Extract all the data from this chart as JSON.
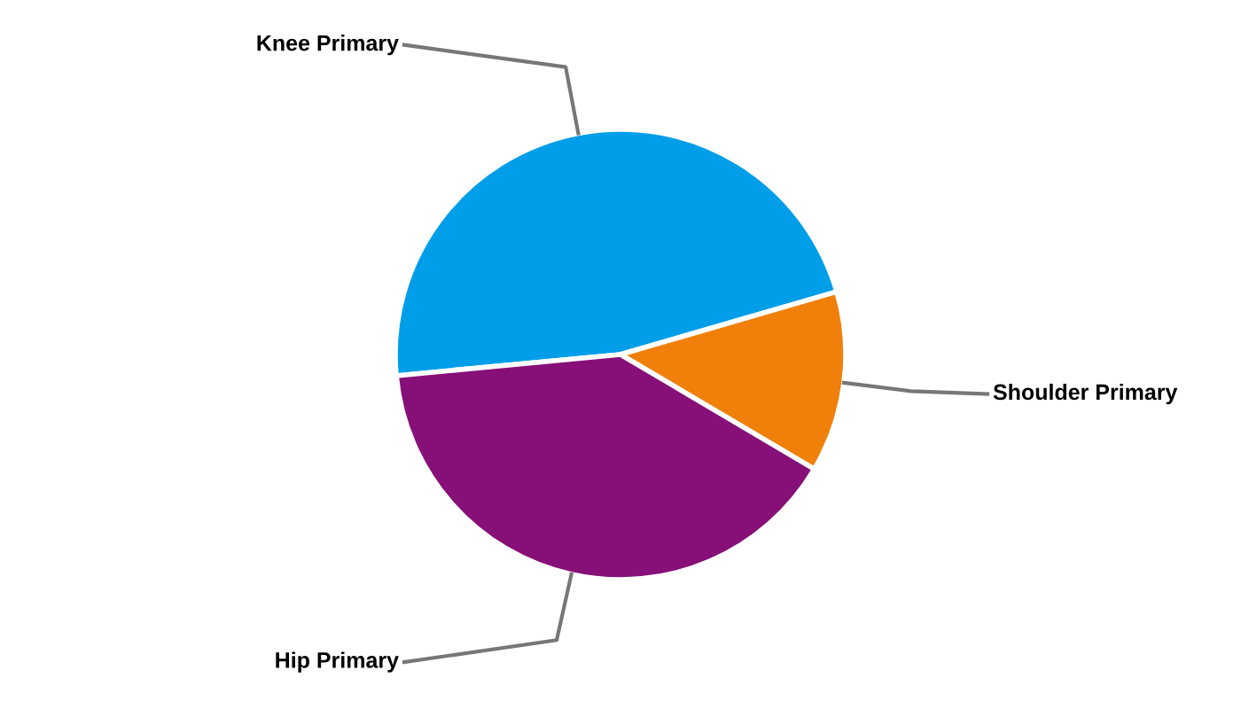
{
  "chart_data": {
    "type": "pie",
    "categories": [
      "Knee Primary",
      "Shoulder Primary",
      "Hip Primary"
    ],
    "values": [
      47,
      13,
      40
    ],
    "colors": [
      "#009ee9",
      "#f0800a",
      "#870f78"
    ],
    "legend": false
  }
}
